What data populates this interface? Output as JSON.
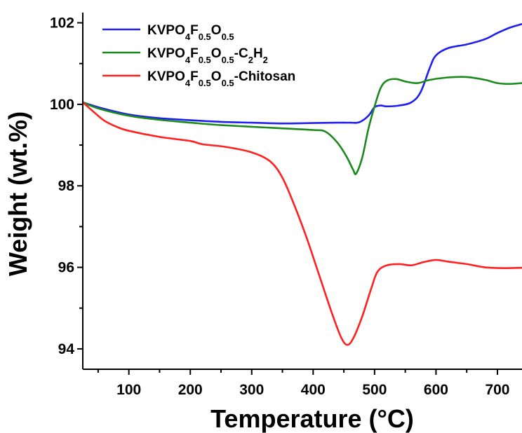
{
  "chart_data": {
    "type": "line",
    "title": "",
    "xlabel": "Temperature (°C)",
    "ylabel": "Weight (wt.%)",
    "xlim": [
      25,
      740
    ],
    "ylim": [
      93.5,
      102.25
    ],
    "x_ticks": [
      100,
      200,
      300,
      400,
      500,
      600,
      700
    ],
    "y_ticks": [
      94,
      96,
      98,
      100,
      102
    ],
    "grid": false,
    "legend_position": "top-left",
    "series": [
      {
        "name": "KVPO4F0.5O0.5",
        "legend_html": "KVPO<tspan baseline-shift=\"sub\" font-size=\"13\">4</tspan>F<tspan baseline-shift=\"sub\" font-size=\"13\">0.5</tspan>O<tspan baseline-shift=\"sub\" font-size=\"13\">0.5</tspan>",
        "color": "#1f1fef",
        "points": [
          [
            25,
            100.05
          ],
          [
            50,
            99.93
          ],
          [
            100,
            99.75
          ],
          [
            150,
            99.66
          ],
          [
            200,
            99.61
          ],
          [
            250,
            99.57
          ],
          [
            300,
            99.55
          ],
          [
            350,
            99.53
          ],
          [
            400,
            99.54
          ],
          [
            440,
            99.55
          ],
          [
            460,
            99.55
          ],
          [
            475,
            99.56
          ],
          [
            490,
            99.72
          ],
          [
            500,
            99.93
          ],
          [
            510,
            99.97
          ],
          [
            520,
            99.95
          ],
          [
            540,
            99.97
          ],
          [
            560,
            100.05
          ],
          [
            575,
            100.3
          ],
          [
            590,
            100.9
          ],
          [
            600,
            101.2
          ],
          [
            620,
            101.38
          ],
          [
            650,
            101.47
          ],
          [
            680,
            101.6
          ],
          [
            700,
            101.75
          ],
          [
            720,
            101.88
          ],
          [
            740,
            101.97
          ]
        ]
      },
      {
        "name": "KVPO4F0.5O0.5-C2H2",
        "legend_html": "KVPO<tspan baseline-shift=\"sub\" font-size=\"13\">4</tspan>F<tspan baseline-shift=\"sub\" font-size=\"13\">0.5</tspan>O<tspan baseline-shift=\"sub\" font-size=\"13\">0.5</tspan>-C<tspan baseline-shift=\"sub\" font-size=\"13\">2</tspan>H<tspan baseline-shift=\"sub\" font-size=\"13\">2</tspan>",
        "color": "#1a8a1a",
        "points": [
          [
            25,
            100.05
          ],
          [
            50,
            99.9
          ],
          [
            100,
            99.72
          ],
          [
            150,
            99.62
          ],
          [
            200,
            99.55
          ],
          [
            250,
            99.49
          ],
          [
            300,
            99.45
          ],
          [
            350,
            99.41
          ],
          [
            400,
            99.37
          ],
          [
            420,
            99.33
          ],
          [
            440,
            99.05
          ],
          [
            455,
            98.7
          ],
          [
            465,
            98.4
          ],
          [
            470,
            98.3
          ],
          [
            480,
            98.7
          ],
          [
            490,
            99.4
          ],
          [
            500,
            99.95
          ],
          [
            510,
            100.4
          ],
          [
            520,
            100.58
          ],
          [
            535,
            100.62
          ],
          [
            550,
            100.56
          ],
          [
            570,
            100.52
          ],
          [
            590,
            100.6
          ],
          [
            620,
            100.66
          ],
          [
            650,
            100.67
          ],
          [
            680,
            100.6
          ],
          [
            700,
            100.52
          ],
          [
            720,
            100.5
          ],
          [
            740,
            100.52
          ]
        ]
      },
      {
        "name": "KVPO4F0.5O0.5-Chitosan",
        "legend_html": "KVPO<tspan baseline-shift=\"sub\" font-size=\"13\">4</tspan>F<tspan baseline-shift=\"sub\" font-size=\"13\">0.5</tspan>O<tspan baseline-shift=\"sub\" font-size=\"13\">0.5</tspan>-Chitosan",
        "color": "#ff2020",
        "points": [
          [
            25,
            100.05
          ],
          [
            40,
            99.85
          ],
          [
            60,
            99.6
          ],
          [
            80,
            99.45
          ],
          [
            100,
            99.35
          ],
          [
            150,
            99.2
          ],
          [
            200,
            99.1
          ],
          [
            220,
            99.02
          ],
          [
            260,
            98.95
          ],
          [
            300,
            98.82
          ],
          [
            330,
            98.6
          ],
          [
            350,
            98.2
          ],
          [
            370,
            97.5
          ],
          [
            390,
            96.7
          ],
          [
            410,
            95.8
          ],
          [
            430,
            94.9
          ],
          [
            445,
            94.3
          ],
          [
            455,
            94.1
          ],
          [
            465,
            94.25
          ],
          [
            480,
            94.8
          ],
          [
            495,
            95.5
          ],
          [
            505,
            95.9
          ],
          [
            520,
            96.05
          ],
          [
            540,
            96.08
          ],
          [
            560,
            96.05
          ],
          [
            580,
            96.13
          ],
          [
            600,
            96.18
          ],
          [
            620,
            96.14
          ],
          [
            650,
            96.08
          ],
          [
            680,
            96.0
          ],
          [
            710,
            95.98
          ],
          [
            740,
            95.99
          ]
        ]
      }
    ]
  }
}
